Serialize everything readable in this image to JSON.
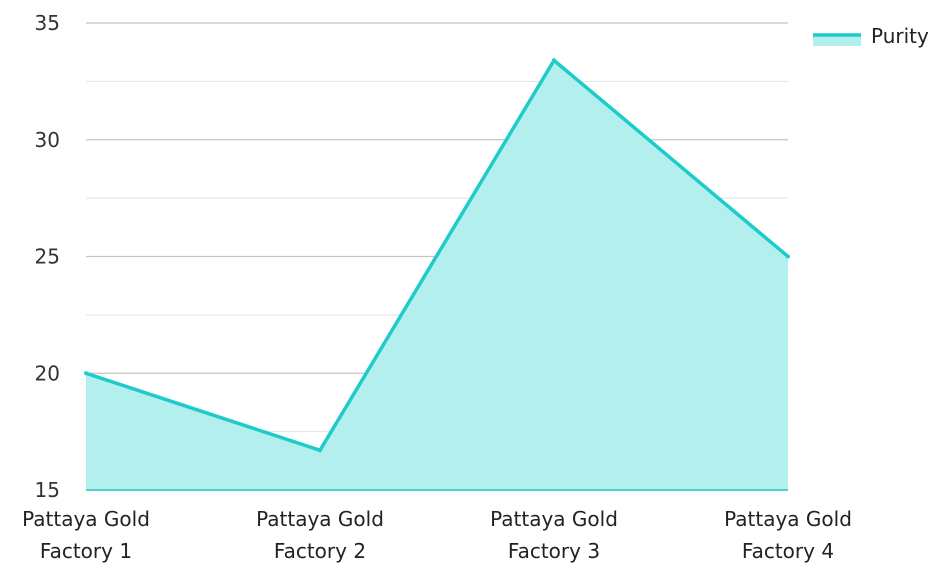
{
  "chart_data": {
    "type": "area",
    "categories": [
      [
        "Pattaya Gold",
        "Factory 1"
      ],
      [
        "Pattaya Gold",
        "Factory 2"
      ],
      [
        "Pattaya Gold",
        "Factory 3"
      ],
      [
        "Pattaya Gold",
        "Factory 4"
      ]
    ],
    "series": [
      {
        "name": "Purity",
        "values": [
          20,
          16.7,
          33.4,
          25
        ]
      }
    ],
    "ylim": [
      15,
      35
    ],
    "y_ticks": [
      15,
      20,
      25,
      30,
      35
    ],
    "grid": true,
    "legend_position": "top-right",
    "colors": {
      "line": "#1ecbcb",
      "fill": "#b2efed",
      "grid_major": "#c4c4c4",
      "grid_minor": "#e3e3e3"
    }
  }
}
